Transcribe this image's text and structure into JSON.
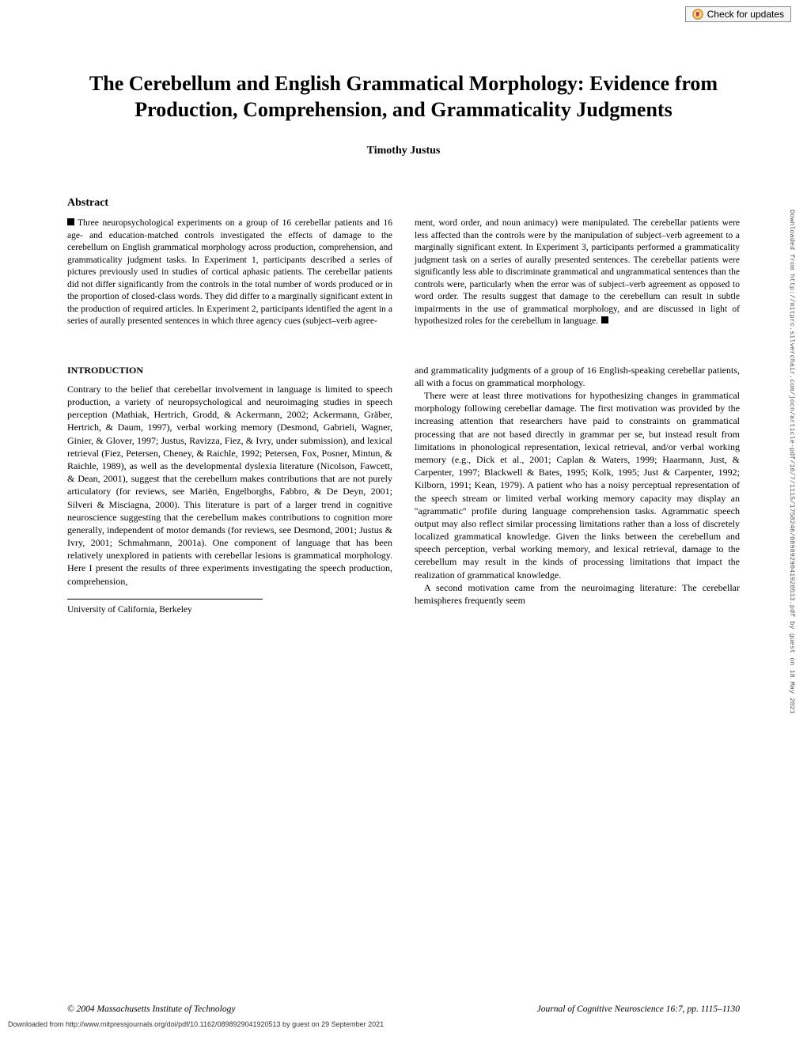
{
  "checkUpdates": "Check for updates",
  "title": "The Cerebellum and English Grammatical Morphology: Evidence from Production, Comprehension, and Grammaticality Judgments",
  "author": "Timothy Justus",
  "abstractHeading": "Abstract",
  "abstract": {
    "left": "Three neuropsychological experiments on a group of 16 cerebellar patients and 16 age- and education-matched controls investigated the effects of damage to the cerebellum on English grammatical morphology across production, comprehension, and grammaticality judgment tasks. In Experiment 1, participants described a series of pictures previously used in studies of cortical aphasic patients. The cerebellar patients did not differ significantly from the controls in the total number of words produced or in the proportion of closed-class words. They did differ to a marginally significant extent in the production of required articles. In Experiment 2, participants identified the agent in a series of aurally presented sentences in which three agency cues (subject–verb agree-",
    "right": "ment, word order, and noun animacy) were manipulated. The cerebellar patients were less affected than the controls were by the manipulation of subject–verb agreement to a marginally significant extent. In Experiment 3, participants performed a grammaticality judgment task on a series of aurally presented sentences. The cerebellar patients were significantly less able to discriminate grammatical and ungrammatical sentences than the controls were, particularly when the error was of subject–verb agreement as opposed to word order. The results suggest that damage to the cerebellum can result in subtle impairments in the use of grammatical morphology, and are discussed in light of hypothesized roles for the cerebellum in language."
  },
  "introHeading": "INTRODUCTION",
  "body": {
    "leftPara": "Contrary to the belief that cerebellar involvement in language is limited to speech production, a variety of neuropsychological and neuroimaging studies in speech perception (Mathiak, Hertrich, Grodd, & Ackermann, 2002; Ackermann, Gräber, Hertrich, & Daum, 1997), verbal working memory (Desmond, Gabrieli, Wagner, Ginier, & Glover, 1997; Justus, Ravizza, Fiez, & Ivry, under submission), and lexical retrieval (Fiez, Petersen, Cheney, & Raichle, 1992; Petersen, Fox, Posner, Mintun, & Raichle, 1989), as well as the developmental dyslexia literature (Nicolson, Fawcett, & Dean, 2001), suggest that the cerebellum makes contributions that are not purely articulatory (for reviews, see Mariën, Engelborghs, Fabbro, & De Deyn, 2001; Silveri & Misciagna, 2000). This literature is part of a larger trend in cognitive neuroscience suggesting that the cerebellum makes contributions to cognition more generally, independent of motor demands (for reviews, see Desmond, 2001; Justus & Ivry, 2001; Schmahmann, 2001a). One component of language that has been relatively unexplored in patients with cerebellar lesions is grammatical morphology. Here I present the results of three experiments investigating the speech production, comprehension,",
    "rightPara1": "and grammaticality judgments of a group of 16 English-speaking cerebellar patients, all with a focus on grammatical morphology.",
    "rightPara2": "There were at least three motivations for hypothesizing changes in grammatical morphology following cerebellar damage. The first motivation was provided by the increasing attention that researchers have paid to constraints on grammatical processing that are not based directly in grammar per se, but instead result from limitations in phonological representation, lexical retrieval, and/or verbal working memory (e.g., Dick et al., 2001; Caplan & Waters, 1999; Haarmann, Just, & Carpenter, 1997; Blackwell & Bates, 1995; Kolk, 1995; Just & Carpenter, 1992; Kilborn, 1991; Kean, 1979). A patient who has a noisy perceptual representation of the speech stream or limited verbal working memory capacity may display an ''agrammatic'' profile during language comprehension tasks. Agrammatic speech output may also reflect similar processing limitations rather than a loss of discretely localized grammatical knowledge. Given the links between the cerebellum and speech perception, verbal working memory, and lexical retrieval, damage to the cerebellum may result in the kinds of processing limitations that impact the realization of grammatical knowledge.",
    "rightPara3": "A second motivation came from the neuroimaging literature: The cerebellar hemispheres frequently seem"
  },
  "affiliation": "University of California, Berkeley",
  "footer": {
    "left": "© 2004 Massachusetts Institute of Technology",
    "right": "Journal of Cognitive Neuroscience 16:7, pp. 1115–1130"
  },
  "downloadNote": "Downloaded from http://www.mitpressjournals.org/doi/pdf/10.1162/0898929041920513 by guest on 29 September 2021",
  "sideNote": "Downloaded from http://mitprc.silverchair.com/jocn/article-pdf/16/7/1115/1758246/0898929041920513.pdf by guest on 18 May 2021"
}
